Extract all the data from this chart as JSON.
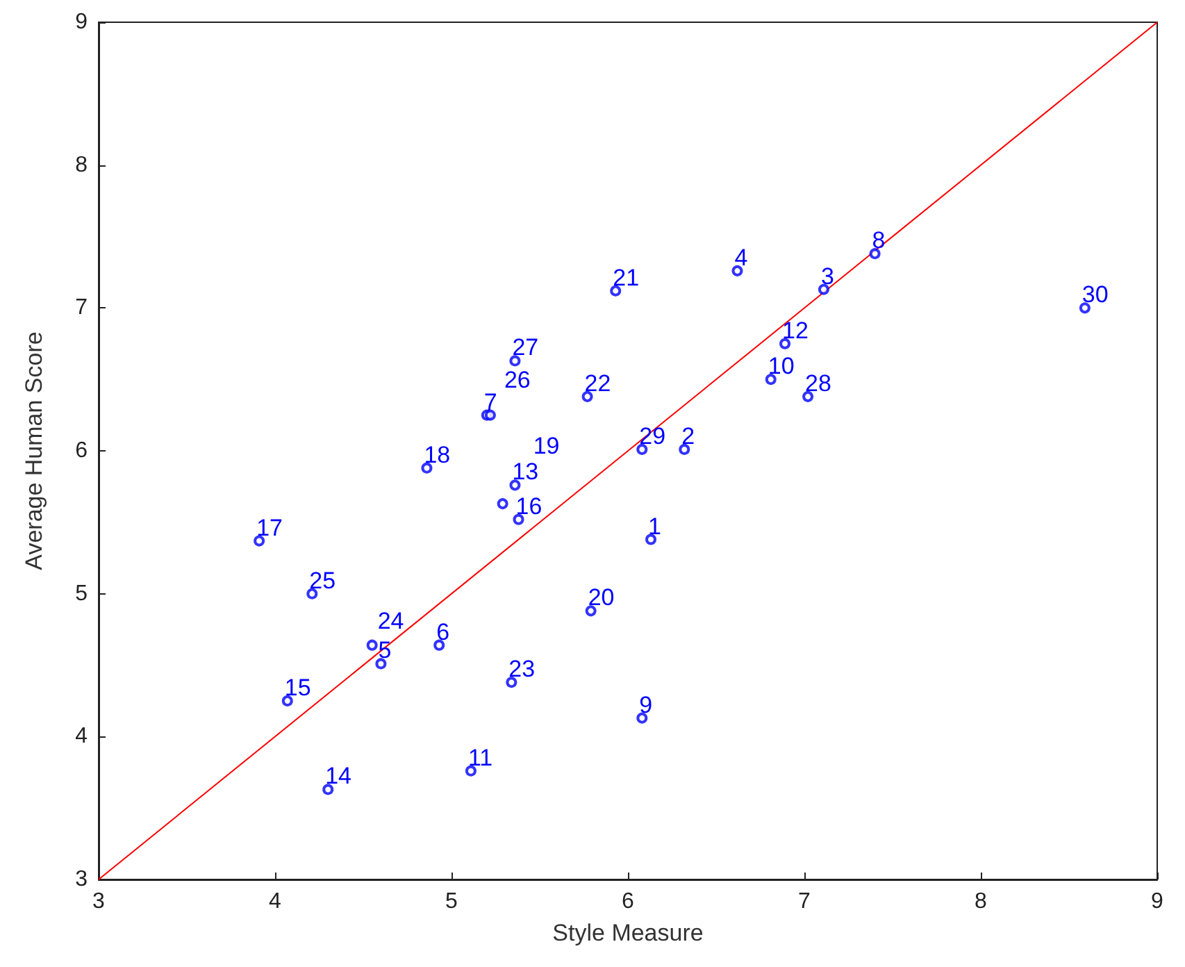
{
  "chart_data": {
    "type": "scatter",
    "xlabel": "Style Measure",
    "ylabel": "Average Human Score",
    "xlim": [
      3,
      9
    ],
    "xticks": [
      3,
      4,
      5,
      6,
      7,
      8,
      9
    ],
    "ylim": [
      3,
      9
    ],
    "yticks": [
      3,
      4,
      5,
      6,
      7,
      8,
      9
    ],
    "grid": false,
    "series": [
      {
        "color": "#0000ff",
        "marker": "circle",
        "x": [
          6.13,
          6.32,
          7.11,
          6.62,
          4.6,
          4.93,
          5.2,
          7.4,
          6.08,
          6.81,
          5.11,
          6.89,
          5.36,
          4.3,
          4.07,
          5.38,
          3.91,
          4.86,
          5.29,
          5.79,
          5.93,
          5.77,
          5.34,
          4.55,
          4.21,
          5.22,
          5.36,
          7.02,
          6.08,
          8.59
        ],
        "values": [
          5.38,
          6.01,
          7.13,
          7.26,
          4.51,
          4.64,
          6.25,
          7.38,
          4.13,
          6.5,
          3.76,
          6.75,
          5.76,
          3.63,
          4.25,
          5.52,
          5.37,
          5.88,
          5.63,
          4.88,
          7.12,
          6.38,
          4.38,
          4.64,
          5.0,
          6.25,
          6.63,
          6.38,
          6.01,
          7.0
        ]
      },
      {
        "type": "line",
        "color": "#ff0000",
        "marker": "none",
        "x": [
          3,
          9
        ],
        "values": [
          3,
          9
        ],
        "line_style": "solid"
      }
    ],
    "annotations": [
      {
        "text": "1",
        "x": 6.13,
        "y": 5.38
      },
      {
        "text": "2",
        "x": 6.32,
        "y": 6.01
      },
      {
        "text": "3",
        "x": 7.11,
        "y": 7.13
      },
      {
        "text": "4",
        "x": 6.62,
        "y": 7.26
      },
      {
        "text": "5",
        "x": 4.6,
        "y": 4.51
      },
      {
        "text": "6",
        "x": 4.93,
        "y": 4.64
      },
      {
        "text": "7",
        "x": 5.2,
        "y": 6.25
      },
      {
        "text": "8",
        "x": 7.4,
        "y": 7.38
      },
      {
        "text": "9",
        "x": 6.08,
        "y": 4.13
      },
      {
        "text": "10",
        "x": 6.81,
        "y": 6.5
      },
      {
        "text": "11",
        "x": 5.11,
        "y": 3.76
      },
      {
        "text": "12",
        "x": 6.89,
        "y": 6.75
      },
      {
        "text": "13",
        "x": 5.36,
        "y": 5.76
      },
      {
        "text": "14",
        "x": 4.3,
        "y": 3.63
      },
      {
        "text": "15",
        "x": 4.07,
        "y": 4.25
      },
      {
        "text": "16",
        "x": 5.38,
        "y": 5.52
      },
      {
        "text": "17",
        "x": 3.91,
        "y": 5.37
      },
      {
        "text": "18",
        "x": 4.86,
        "y": 5.88
      },
      {
        "text": "19",
        "x": 5.29,
        "y": 5.63
      },
      {
        "text": "20",
        "x": 5.79,
        "y": 4.88
      },
      {
        "text": "21",
        "x": 5.93,
        "y": 7.12
      },
      {
        "text": "22",
        "x": 5.77,
        "y": 6.38
      },
      {
        "text": "23",
        "x": 5.34,
        "y": 4.38
      },
      {
        "text": "24",
        "x": 4.55,
        "y": 4.64
      },
      {
        "text": "25",
        "x": 4.21,
        "y": 5.0
      },
      {
        "text": "26",
        "x": 5.22,
        "y": 6.25
      },
      {
        "text": "27",
        "x": 5.36,
        "y": 6.63
      },
      {
        "text": "28",
        "x": 7.02,
        "y": 6.38
      },
      {
        "text": "29",
        "x": 6.08,
        "y": 6.01
      },
      {
        "text": "30",
        "x": 8.59,
        "y": 7.0
      }
    ]
  }
}
